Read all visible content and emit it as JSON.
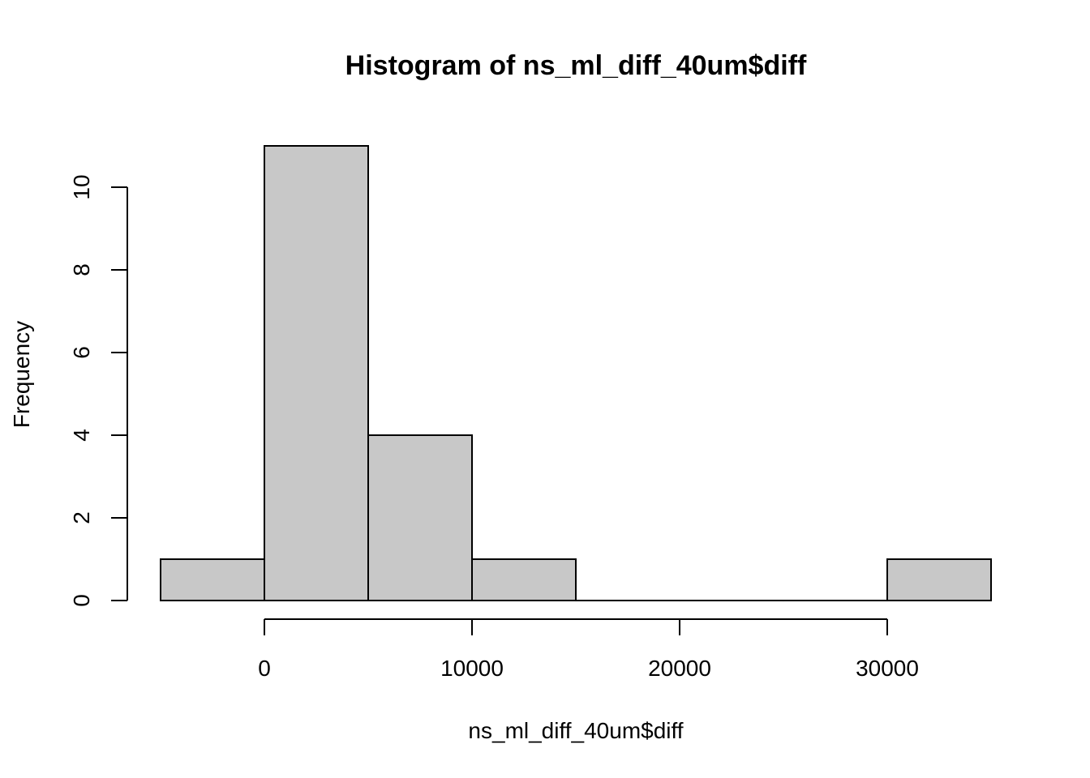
{
  "chart_data": {
    "type": "bar",
    "title": "Histogram of ns_ml_diff_40um$diff",
    "xlabel": "ns_ml_diff_40um$diff",
    "ylabel": "Frequency",
    "bin_edges": [
      -5000,
      0,
      5000,
      10000,
      15000,
      20000,
      25000,
      30000,
      35000
    ],
    "values": [
      1,
      11,
      4,
      1,
      0,
      0,
      0,
      1
    ],
    "x_ticks": [
      "0",
      "10000",
      "20000",
      "30000"
    ],
    "y_ticks": [
      "0",
      "2",
      "4",
      "6",
      "8",
      "10"
    ],
    "xlim": [
      -5000,
      35000
    ],
    "ylim": [
      0,
      11
    ],
    "grid": false,
    "bar_fill": "#C8C8C8",
    "bar_stroke": "#000000"
  }
}
